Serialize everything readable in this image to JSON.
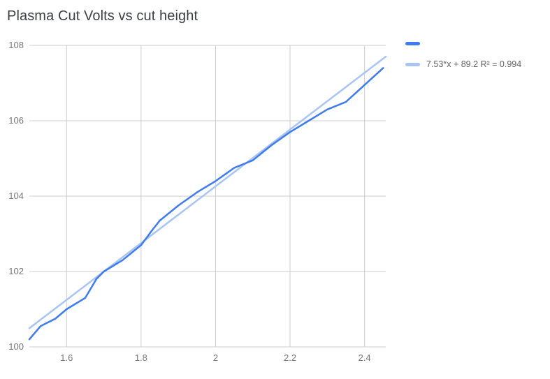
{
  "title": "Plasma Cut Volts vs cut height",
  "legend": {
    "entries": [
      {
        "type": "series",
        "label": ""
      },
      {
        "type": "trendline",
        "label": "7.53*x + 89.2 R² = 0.994"
      }
    ]
  },
  "chart_data": {
    "type": "line",
    "title": "Plasma Cut Volts vs cut height",
    "xlabel": "",
    "ylabel": "",
    "xlim": [
      1.5,
      2.457
    ],
    "ylim": [
      100,
      108
    ],
    "x_ticks": [
      1.6,
      1.8,
      2.0,
      2.2,
      2.4
    ],
    "x_tick_labels": [
      "1.6",
      "1.8",
      "2",
      "2.2",
      "2.4"
    ],
    "y_ticks": [
      100,
      102,
      104,
      106,
      108
    ],
    "y_tick_labels": [
      "100",
      "102",
      "104",
      "106",
      "108"
    ],
    "grid": true,
    "grid_color": "#cccccc",
    "tick_label_color": "#757575",
    "legend_position": "top-right",
    "series": [
      {
        "name": "",
        "color": "#3e7bf0",
        "points": [
          [
            1.5,
            100.2
          ],
          [
            1.53,
            100.55
          ],
          [
            1.57,
            100.75
          ],
          [
            1.6,
            101.0
          ],
          [
            1.65,
            101.3
          ],
          [
            1.68,
            101.8
          ],
          [
            1.7,
            102.0
          ],
          [
            1.75,
            102.3
          ],
          [
            1.8,
            102.7
          ],
          [
            1.83,
            103.1
          ],
          [
            1.85,
            103.35
          ],
          [
            1.9,
            103.75
          ],
          [
            1.95,
            104.1
          ],
          [
            2.0,
            104.4
          ],
          [
            2.05,
            104.75
          ],
          [
            2.1,
            104.95
          ],
          [
            2.15,
            105.35
          ],
          [
            2.2,
            105.7
          ],
          [
            2.25,
            106.0
          ],
          [
            2.3,
            106.3
          ],
          [
            2.35,
            106.5
          ],
          [
            2.4,
            106.95
          ],
          [
            2.45,
            107.4
          ]
        ]
      }
    ],
    "trendline": {
      "color": "#a8c4f5",
      "slope": 7.53,
      "intercept": 89.2,
      "r_squared": 0.994,
      "label": "7.53*x + 89.2 R² = 0.994"
    }
  }
}
